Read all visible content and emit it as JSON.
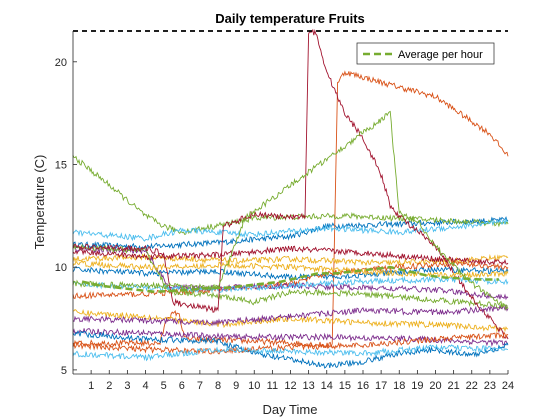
{
  "chart_data": {
    "type": "line",
    "title": "Daily temperature Fruits",
    "xlabel": "Day Time",
    "ylabel": "Temperature (C)",
    "xlim": [
      0,
      24
    ],
    "ylim": [
      4.8,
      21.5
    ],
    "x_ticks": [
      1,
      2,
      3,
      4,
      5,
      6,
      7,
      8,
      9,
      10,
      11,
      12,
      13,
      14,
      15,
      16,
      17,
      18,
      19,
      20,
      21,
      22,
      23,
      24
    ],
    "y_ticks": [
      5,
      10,
      15,
      20
    ],
    "grid": false,
    "legend_position": "top-right",
    "colors": [
      "#0072BD",
      "#D95319",
      "#EDB120",
      "#7E2F8E",
      "#77AC30",
      "#4DBEEE",
      "#A2142F"
    ],
    "series": [
      {
        "values": [
          [
            0,
            11.1
          ],
          [
            4,
            11.0
          ],
          [
            8,
            11.2
          ],
          [
            12,
            11.5
          ],
          [
            14,
            12.0
          ],
          [
            18,
            12.1
          ],
          [
            21,
            12.2
          ],
          [
            24,
            12.3
          ]
        ]
      },
      {
        "values": [
          [
            0,
            6.3
          ],
          [
            4.8,
            6.3
          ],
          [
            5.2,
            7.6
          ],
          [
            5.8,
            7.8
          ],
          [
            6.2,
            6.5
          ],
          [
            10,
            6.4
          ],
          [
            14.3,
            6.2
          ],
          [
            14.6,
            19.0
          ],
          [
            15,
            19.5
          ],
          [
            17,
            19.0
          ],
          [
            20,
            18.3
          ],
          [
            23,
            16.5
          ],
          [
            24,
            15.4
          ]
        ]
      },
      {
        "values": [
          [
            0,
            10.4
          ],
          [
            4,
            10.5
          ],
          [
            9,
            10.3
          ],
          [
            12,
            10.4
          ],
          [
            17,
            10.2
          ],
          [
            21,
            10.3
          ],
          [
            24,
            10.5
          ]
        ]
      },
      {
        "values": [
          [
            0,
            6.9
          ],
          [
            4,
            6.8
          ],
          [
            9,
            6.6
          ],
          [
            14,
            6.6
          ],
          [
            19,
            6.5
          ],
          [
            24,
            6.3
          ]
        ]
      },
      {
        "values": [
          [
            0,
            15.4
          ],
          [
            2,
            14.0
          ],
          [
            4,
            12.5
          ],
          [
            5,
            12.0
          ],
          [
            6,
            11.7
          ],
          [
            9,
            12.2
          ],
          [
            10,
            12.4
          ],
          [
            15,
            12.5
          ],
          [
            20,
            12.3
          ],
          [
            24,
            12.1
          ]
        ]
      },
      {
        "values": [
          [
            0,
            11.7
          ],
          [
            4,
            11.4
          ],
          [
            6,
            11.8
          ],
          [
            10,
            11.6
          ],
          [
            14,
            11.9
          ],
          [
            18,
            11.7
          ],
          [
            24,
            12.2
          ]
        ]
      },
      {
        "values": [
          [
            0,
            10.8
          ],
          [
            4,
            10.5
          ],
          [
            8,
            10.6
          ],
          [
            12,
            10.9
          ],
          [
            16,
            10.7
          ],
          [
            20,
            10.4
          ],
          [
            24,
            10.2
          ]
        ]
      },
      {
        "values": [
          [
            0,
            9.9
          ],
          [
            4,
            9.7
          ],
          [
            8,
            9.8
          ],
          [
            12,
            9.5
          ],
          [
            16,
            9.6
          ],
          [
            20,
            9.9
          ],
          [
            24,
            9.8
          ]
        ]
      },
      {
        "values": [
          [
            0,
            8.6
          ],
          [
            4,
            8.7
          ],
          [
            8,
            8.9
          ],
          [
            12,
            9.2
          ],
          [
            14,
            9.7
          ],
          [
            18,
            10.0
          ],
          [
            21,
            10.2
          ],
          [
            24,
            10.0
          ]
        ]
      },
      {
        "values": [
          [
            0,
            7.8
          ],
          [
            4,
            7.6
          ],
          [
            8,
            7.2
          ],
          [
            12,
            7.5
          ],
          [
            16,
            7.3
          ],
          [
            20,
            7.2
          ],
          [
            24,
            7.0
          ]
        ]
      },
      {
        "values": [
          [
            0,
            10.9
          ],
          [
            4,
            10.8
          ],
          [
            5.3,
            9.0
          ],
          [
            8,
            9.0
          ],
          [
            12,
            9.1
          ],
          [
            16,
            9.0
          ],
          [
            20,
            8.9
          ],
          [
            24,
            8.5
          ]
        ]
      },
      {
        "values": [
          [
            0,
            11.0
          ],
          [
            4,
            10.8
          ],
          [
            5.3,
            8.8
          ],
          [
            8,
            8.6
          ],
          [
            10,
            8.3
          ],
          [
            12,
            8.8
          ],
          [
            16,
            8.7
          ],
          [
            20,
            8.4
          ],
          [
            24,
            8.1
          ]
        ]
      },
      {
        "values": [
          [
            0,
            9.2
          ],
          [
            4,
            9.0
          ],
          [
            8,
            8.9
          ],
          [
            12,
            9.1
          ],
          [
            16,
            9.3
          ],
          [
            20,
            9.4
          ],
          [
            24,
            9.3
          ]
        ]
      },
      {
        "values": [
          [
            0,
            11.0
          ],
          [
            4,
            10.9
          ],
          [
            5,
            10.7
          ],
          [
            5.5,
            8.3
          ],
          [
            8,
            7.9
          ],
          [
            8.3,
            12.0
          ],
          [
            10,
            12.6
          ],
          [
            12,
            12.4
          ],
          [
            12.8,
            12.5
          ],
          [
            13,
            21.5
          ],
          [
            13.4,
            21.4
          ],
          [
            14,
            19.5
          ],
          [
            15,
            17.5
          ],
          [
            16,
            16.3
          ],
          [
            17,
            14.5
          ],
          [
            17.5,
            13.0
          ],
          [
            18,
            12.5
          ],
          [
            20,
            11.0
          ],
          [
            22,
            8.5
          ],
          [
            24,
            6.5
          ]
        ]
      },
      {
        "values": [
          [
            0,
            6.8
          ],
          [
            4,
            6.5
          ],
          [
            8,
            6.4
          ],
          [
            10,
            5.8
          ],
          [
            12,
            5.5
          ],
          [
            14,
            5.2
          ],
          [
            16,
            5.4
          ],
          [
            18,
            5.8
          ],
          [
            20,
            6.0
          ],
          [
            22,
            5.7
          ],
          [
            24,
            6.2
          ]
        ]
      },
      {
        "values": [
          [
            0,
            6.2
          ],
          [
            4,
            6.0
          ],
          [
            8,
            5.9
          ],
          [
            12,
            6.1
          ],
          [
            16,
            6.2
          ],
          [
            20,
            6.5
          ],
          [
            24,
            6.7
          ]
        ]
      },
      {
        "values": [
          [
            0,
            10.2
          ],
          [
            4,
            10.0
          ],
          [
            8,
            10.1
          ],
          [
            12,
            10.0
          ],
          [
            16,
            9.8
          ],
          [
            20,
            9.6
          ],
          [
            24,
            9.7
          ]
        ]
      },
      {
        "values": [
          [
            0,
            7.5
          ],
          [
            4,
            7.4
          ],
          [
            8,
            7.3
          ],
          [
            12,
            7.6
          ],
          [
            16,
            7.9
          ],
          [
            20,
            7.8
          ],
          [
            24,
            8.0
          ]
        ]
      },
      {
        "values": [
          [
            0,
            9.2
          ],
          [
            4,
            9.1
          ],
          [
            8,
            9.0
          ],
          [
            9.5,
            12.4
          ],
          [
            17.5,
            17.5
          ],
          [
            18,
            12.6
          ],
          [
            19,
            12.3
          ],
          [
            20,
            11.0
          ],
          [
            22,
            9.2
          ],
          [
            24,
            8.0
          ]
        ]
      },
      {
        "values": [
          [
            0,
            5.8
          ],
          [
            4,
            5.6
          ],
          [
            8,
            6.0
          ],
          [
            12,
            5.9
          ],
          [
            16,
            5.8
          ],
          [
            20,
            6.1
          ],
          [
            24,
            6.0
          ]
        ]
      }
    ],
    "reference_lines": [
      {
        "y": 21.5,
        "color": "#000000",
        "dash": "dashed"
      }
    ],
    "average": {
      "name": "Average per hour",
      "color": "#77AC30",
      "x": [
        0.5,
        1.5,
        2.5,
        3.5,
        4.5,
        5.5,
        6.5,
        7.5,
        8.5,
        9.5,
        10.5,
        11.5,
        12.5,
        13.5,
        14.5,
        15.5,
        16.5,
        17.5,
        18.5,
        19.5,
        20.5,
        21.5,
        22.5,
        23.5
      ],
      "y": [
        9.3,
        9.1,
        9.0,
        8.9,
        8.8,
        8.85,
        8.9,
        9.0,
        9.0,
        9.1,
        9.2,
        9.3,
        9.5,
        9.7,
        9.7,
        9.8,
        9.9,
        10.0,
        9.8,
        9.6,
        9.5,
        9.45,
        9.4,
        9.4
      ]
    }
  }
}
